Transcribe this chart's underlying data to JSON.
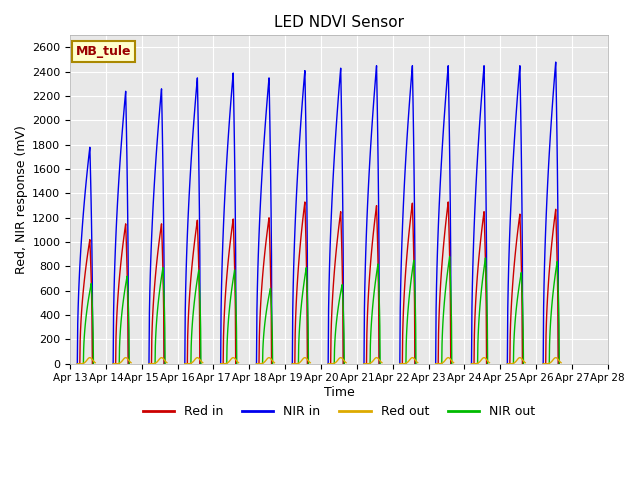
{
  "title": "LED NDVI Sensor",
  "xlabel": "Time",
  "ylabel": "Red, NIR response (mV)",
  "ylim": [
    0,
    2700
  ],
  "yticks": [
    0,
    200,
    400,
    600,
    800,
    1000,
    1200,
    1400,
    1600,
    1800,
    2000,
    2200,
    2400,
    2600
  ],
  "xtick_labels": [
    "Apr 13",
    "Apr 14",
    "Apr 15",
    "Apr 16",
    "Apr 17",
    "Apr 18",
    "Apr 19",
    "Apr 20",
    "Apr 21",
    "Apr 22",
    "Apr 23",
    "Apr 24",
    "Apr 25",
    "Apr 26",
    "Apr 27",
    "Apr 28"
  ],
  "legend_label": "MB_tule",
  "legend_entries": [
    "Red in",
    "NIR in",
    "Red out",
    "NIR out"
  ],
  "legend_colors": [
    "#cc0000",
    "#0000ee",
    "#ddaa00",
    "#00bb00"
  ],
  "plot_bg": "#e8e8e8",
  "grid_color": "#ffffff",
  "line_colors": {
    "red_in": "#cc0000",
    "nir_in": "#0000ee",
    "red_out": "#ddaa00",
    "nir_out": "#00bb00"
  },
  "num_days": 15,
  "peaks": [
    {
      "day": 0.55,
      "red_in": 1020,
      "nir_in": 1780,
      "red_out": 50,
      "nir_out": 660
    },
    {
      "day": 1.55,
      "red_in": 1150,
      "nir_in": 2240,
      "red_out": 50,
      "nir_out": 720
    },
    {
      "day": 2.55,
      "red_in": 1150,
      "nir_in": 2260,
      "red_out": 50,
      "nir_out": 790
    },
    {
      "day": 3.55,
      "red_in": 1180,
      "nir_in": 2350,
      "red_out": 50,
      "nir_out": 770
    },
    {
      "day": 4.55,
      "red_in": 1190,
      "nir_in": 2390,
      "red_out": 50,
      "nir_out": 770
    },
    {
      "day": 5.55,
      "red_in": 1200,
      "nir_in": 2350,
      "red_out": 50,
      "nir_out": 620
    },
    {
      "day": 6.55,
      "red_in": 1330,
      "nir_in": 2410,
      "red_out": 50,
      "nir_out": 790
    },
    {
      "day": 7.55,
      "red_in": 1250,
      "nir_in": 2430,
      "red_out": 50,
      "nir_out": 650
    },
    {
      "day": 8.55,
      "red_in": 1300,
      "nir_in": 2450,
      "red_out": 50,
      "nir_out": 820
    },
    {
      "day": 9.55,
      "red_in": 1320,
      "nir_in": 2450,
      "red_out": 50,
      "nir_out": 850
    },
    {
      "day": 10.55,
      "red_in": 1330,
      "nir_in": 2450,
      "red_out": 50,
      "nir_out": 880
    },
    {
      "day": 11.55,
      "red_in": 1250,
      "nir_in": 2450,
      "red_out": 50,
      "nir_out": 870
    },
    {
      "day": 12.55,
      "red_in": 1230,
      "nir_in": 2450,
      "red_out": 50,
      "nir_out": 750
    },
    {
      "day": 13.55,
      "red_in": 1270,
      "nir_in": 2480,
      "red_out": 50,
      "nir_out": 840
    }
  ]
}
